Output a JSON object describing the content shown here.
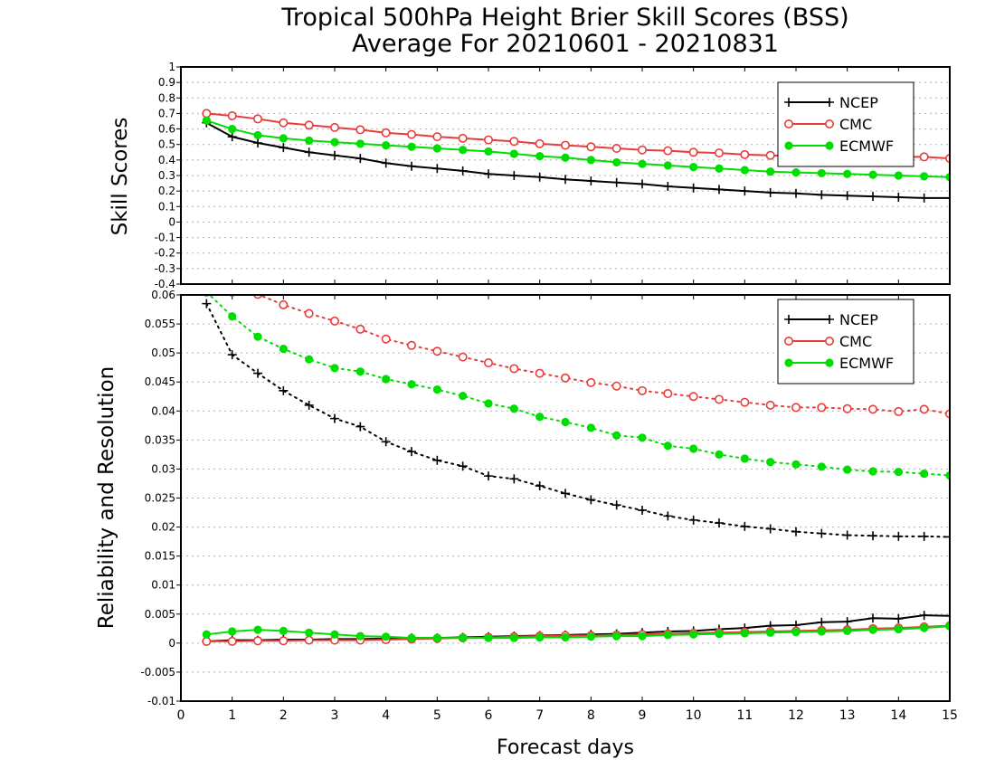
{
  "chart_data": [
    {
      "type": "line",
      "title": "Tropical 500hPa Height Brier Skill Scores (BSS)",
      "subtitle": "Average For 20210601 - 20210831",
      "ylabel": "Skill Scores",
      "xlabel": "",
      "xlim": [
        0,
        15
      ],
      "ylim": [
        -0.4,
        1
      ],
      "yticks": [
        "-0.4",
        "-0.3",
        "-0.2",
        "-0.1",
        "0",
        "0.1",
        "0.2",
        "0.3",
        "0.4",
        "0.5",
        "0.6",
        "0.7",
        "0.8",
        "0.9",
        "1"
      ],
      "grid": true,
      "legend_position": "top-right",
      "x": [
        0.5,
        1,
        1.5,
        2,
        2.5,
        3,
        3.5,
        4,
        4.5,
        5,
        5.5,
        6,
        6.5,
        7,
        7.5,
        8,
        8.5,
        9,
        9.5,
        10,
        10.5,
        11,
        11.5,
        12,
        12.5,
        13,
        13.5,
        14,
        14.5,
        15
      ],
      "series": [
        {
          "name": "NCEP",
          "color": "#000000",
          "marker": "plus",
          "line": "solid",
          "values": [
            0.64,
            0.55,
            0.51,
            0.48,
            0.45,
            0.43,
            0.41,
            0.38,
            0.36,
            0.345,
            0.33,
            0.31,
            0.3,
            0.29,
            0.275,
            0.265,
            0.255,
            0.245,
            0.23,
            0.22,
            0.21,
            0.2,
            0.19,
            0.185,
            0.175,
            0.17,
            0.165,
            0.16,
            0.155,
            0.155
          ]
        },
        {
          "name": "CMC",
          "color": "#e83c3c",
          "marker": "open-circle",
          "line": "solid",
          "values": [
            0.7,
            0.685,
            0.665,
            0.64,
            0.625,
            0.61,
            0.595,
            0.575,
            0.565,
            0.55,
            0.54,
            0.53,
            0.52,
            0.505,
            0.495,
            0.485,
            0.475,
            0.465,
            0.46,
            0.45,
            0.445,
            0.435,
            0.43,
            0.425,
            0.42,
            0.42,
            0.42,
            0.42,
            0.42,
            0.41
          ]
        },
        {
          "name": "ECMWF",
          "color": "#00dd00",
          "marker": "filled-circle",
          "line": "solid",
          "values": [
            0.655,
            0.6,
            0.56,
            0.54,
            0.525,
            0.515,
            0.505,
            0.495,
            0.485,
            0.475,
            0.465,
            0.455,
            0.44,
            0.425,
            0.415,
            0.4,
            0.385,
            0.375,
            0.365,
            0.355,
            0.345,
            0.335,
            0.325,
            0.32,
            0.315,
            0.31,
            0.305,
            0.3,
            0.295,
            0.29
          ]
        }
      ]
    },
    {
      "type": "line",
      "ylabel": "Reliability and Resolution",
      "xlabel": "Forecast days",
      "xlim": [
        0,
        15
      ],
      "ylim": [
        -0.01,
        0.06
      ],
      "yticks": [
        "-0.01",
        "-0.005",
        "0",
        "0.005",
        "0.01",
        "0.015",
        "0.02",
        "0.025",
        "0.03",
        "0.035",
        "0.04",
        "0.045",
        "0.05",
        "0.055",
        "0.06"
      ],
      "xticks": [
        "0",
        "1",
        "2",
        "3",
        "4",
        "5",
        "6",
        "7",
        "8",
        "9",
        "10",
        "11",
        "12",
        "13",
        "14",
        "15"
      ],
      "grid": true,
      "legend_position": "top-right",
      "x": [
        0.5,
        1,
        1.5,
        2,
        2.5,
        3,
        3.5,
        4,
        4.5,
        5,
        5.5,
        6,
        6.5,
        7,
        7.5,
        8,
        8.5,
        9,
        9.5,
        10,
        10.5,
        11,
        11.5,
        12,
        12.5,
        13,
        13.5,
        14,
        14.5,
        15
      ],
      "series": [
        {
          "name": "NCEP",
          "color": "#000000",
          "marker": "plus",
          "line": "dotted",
          "values": [
            0.0585,
            0.0497,
            0.0465,
            0.0435,
            0.041,
            0.0387,
            0.0373,
            0.0347,
            0.033,
            0.0315,
            0.0305,
            0.0288,
            0.0283,
            0.0271,
            0.0258,
            0.0247,
            0.0238,
            0.0229,
            0.0219,
            0.0212,
            0.0207,
            0.0201,
            0.0197,
            0.0192,
            0.0189,
            0.0186,
            0.0185,
            0.0184,
            0.0184,
            0.0183
          ]
        },
        {
          "name": "CMC",
          "color": "#e83c3c",
          "marker": "open-circle",
          "line": "dotted",
          "values": [
            0.0605,
            0.0605,
            0.0601,
            0.0583,
            0.0568,
            0.0555,
            0.0541,
            0.0524,
            0.0513,
            0.0503,
            0.0493,
            0.0483,
            0.0473,
            0.0465,
            0.0457,
            0.0449,
            0.0443,
            0.0435,
            0.043,
            0.0425,
            0.042,
            0.0415,
            0.041,
            0.0406,
            0.0406,
            0.0404,
            0.0403,
            0.0399,
            0.0403,
            0.0395
          ]
        },
        {
          "name": "ECMWF",
          "color": "#00dd00",
          "marker": "filled-circle",
          "line": "dotted",
          "values": [
            0.0605,
            0.0563,
            0.0528,
            0.0507,
            0.0489,
            0.0474,
            0.0468,
            0.0455,
            0.0446,
            0.0437,
            0.0426,
            0.0413,
            0.0404,
            0.039,
            0.0381,
            0.0371,
            0.0358,
            0.0354,
            0.034,
            0.0335,
            0.0325,
            0.0318,
            0.0312,
            0.0308,
            0.0304,
            0.0299,
            0.0296,
            0.0295,
            0.0292,
            0.0289
          ]
        },
        {
          "name": "NCEP",
          "color": "#000000",
          "marker": "plus",
          "line": "solid",
          "legend": false,
          "values": [
            0.0003,
            0.0005,
            0.0005,
            0.0006,
            0.0006,
            0.0007,
            0.0007,
            0.0008,
            0.0009,
            0.0009,
            0.001,
            0.0011,
            0.0012,
            0.0013,
            0.0014,
            0.0015,
            0.0016,
            0.0018,
            0.002,
            0.0021,
            0.0024,
            0.0026,
            0.003,
            0.0031,
            0.0036,
            0.0037,
            0.0043,
            0.0042,
            0.0048,
            0.0047
          ]
        },
        {
          "name": "CMC",
          "color": "#e83c3c",
          "marker": "open-circle",
          "line": "solid",
          "legend": false,
          "values": [
            0.0003,
            0.0003,
            0.0004,
            0.0004,
            0.0005,
            0.0005,
            0.0005,
            0.0006,
            0.0007,
            0.0008,
            0.0009,
            0.001,
            0.0011,
            0.0012,
            0.0013,
            0.0013,
            0.0014,
            0.0015,
            0.0016,
            0.0017,
            0.0018,
            0.0019,
            0.002,
            0.0021,
            0.0022,
            0.0023,
            0.0025,
            0.0026,
            0.0028,
            0.003
          ]
        },
        {
          "name": "ECMWF",
          "color": "#00dd00",
          "marker": "filled-circle",
          "line": "solid",
          "legend": false,
          "values": [
            0.0015,
            0.002,
            0.0023,
            0.0021,
            0.0018,
            0.0015,
            0.0012,
            0.0011,
            0.0009,
            0.0009,
            0.0009,
            0.0009,
            0.0009,
            0.001,
            0.001,
            0.0011,
            0.0012,
            0.0012,
            0.0014,
            0.0015,
            0.0016,
            0.0017,
            0.0018,
            0.0019,
            0.002,
            0.0021,
            0.0023,
            0.0024,
            0.0026,
            0.0029
          ]
        }
      ]
    }
  ]
}
